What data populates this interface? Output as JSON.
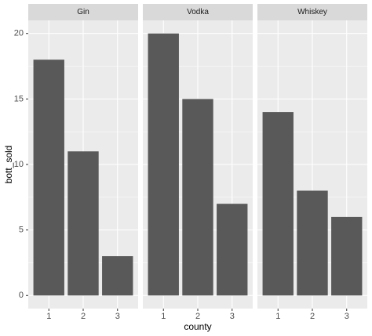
{
  "chart_data": {
    "type": "bar",
    "xlabel": "county",
    "ylabel": "bott_sold",
    "color": "#595959",
    "ylim": [
      -1,
      21
    ],
    "yticks": [
      0,
      5,
      10,
      15,
      20
    ],
    "grid": true,
    "facets": [
      {
        "title": "Gin",
        "categories": [
          "1",
          "2",
          "3"
        ],
        "values": [
          18,
          11,
          3
        ]
      },
      {
        "title": "Vodka",
        "categories": [
          "1",
          "2",
          "3"
        ],
        "values": [
          20,
          15,
          7
        ]
      },
      {
        "title": "Whiskey",
        "categories": [
          "1",
          "2",
          "3"
        ],
        "values": [
          14,
          8,
          6
        ]
      }
    ]
  }
}
